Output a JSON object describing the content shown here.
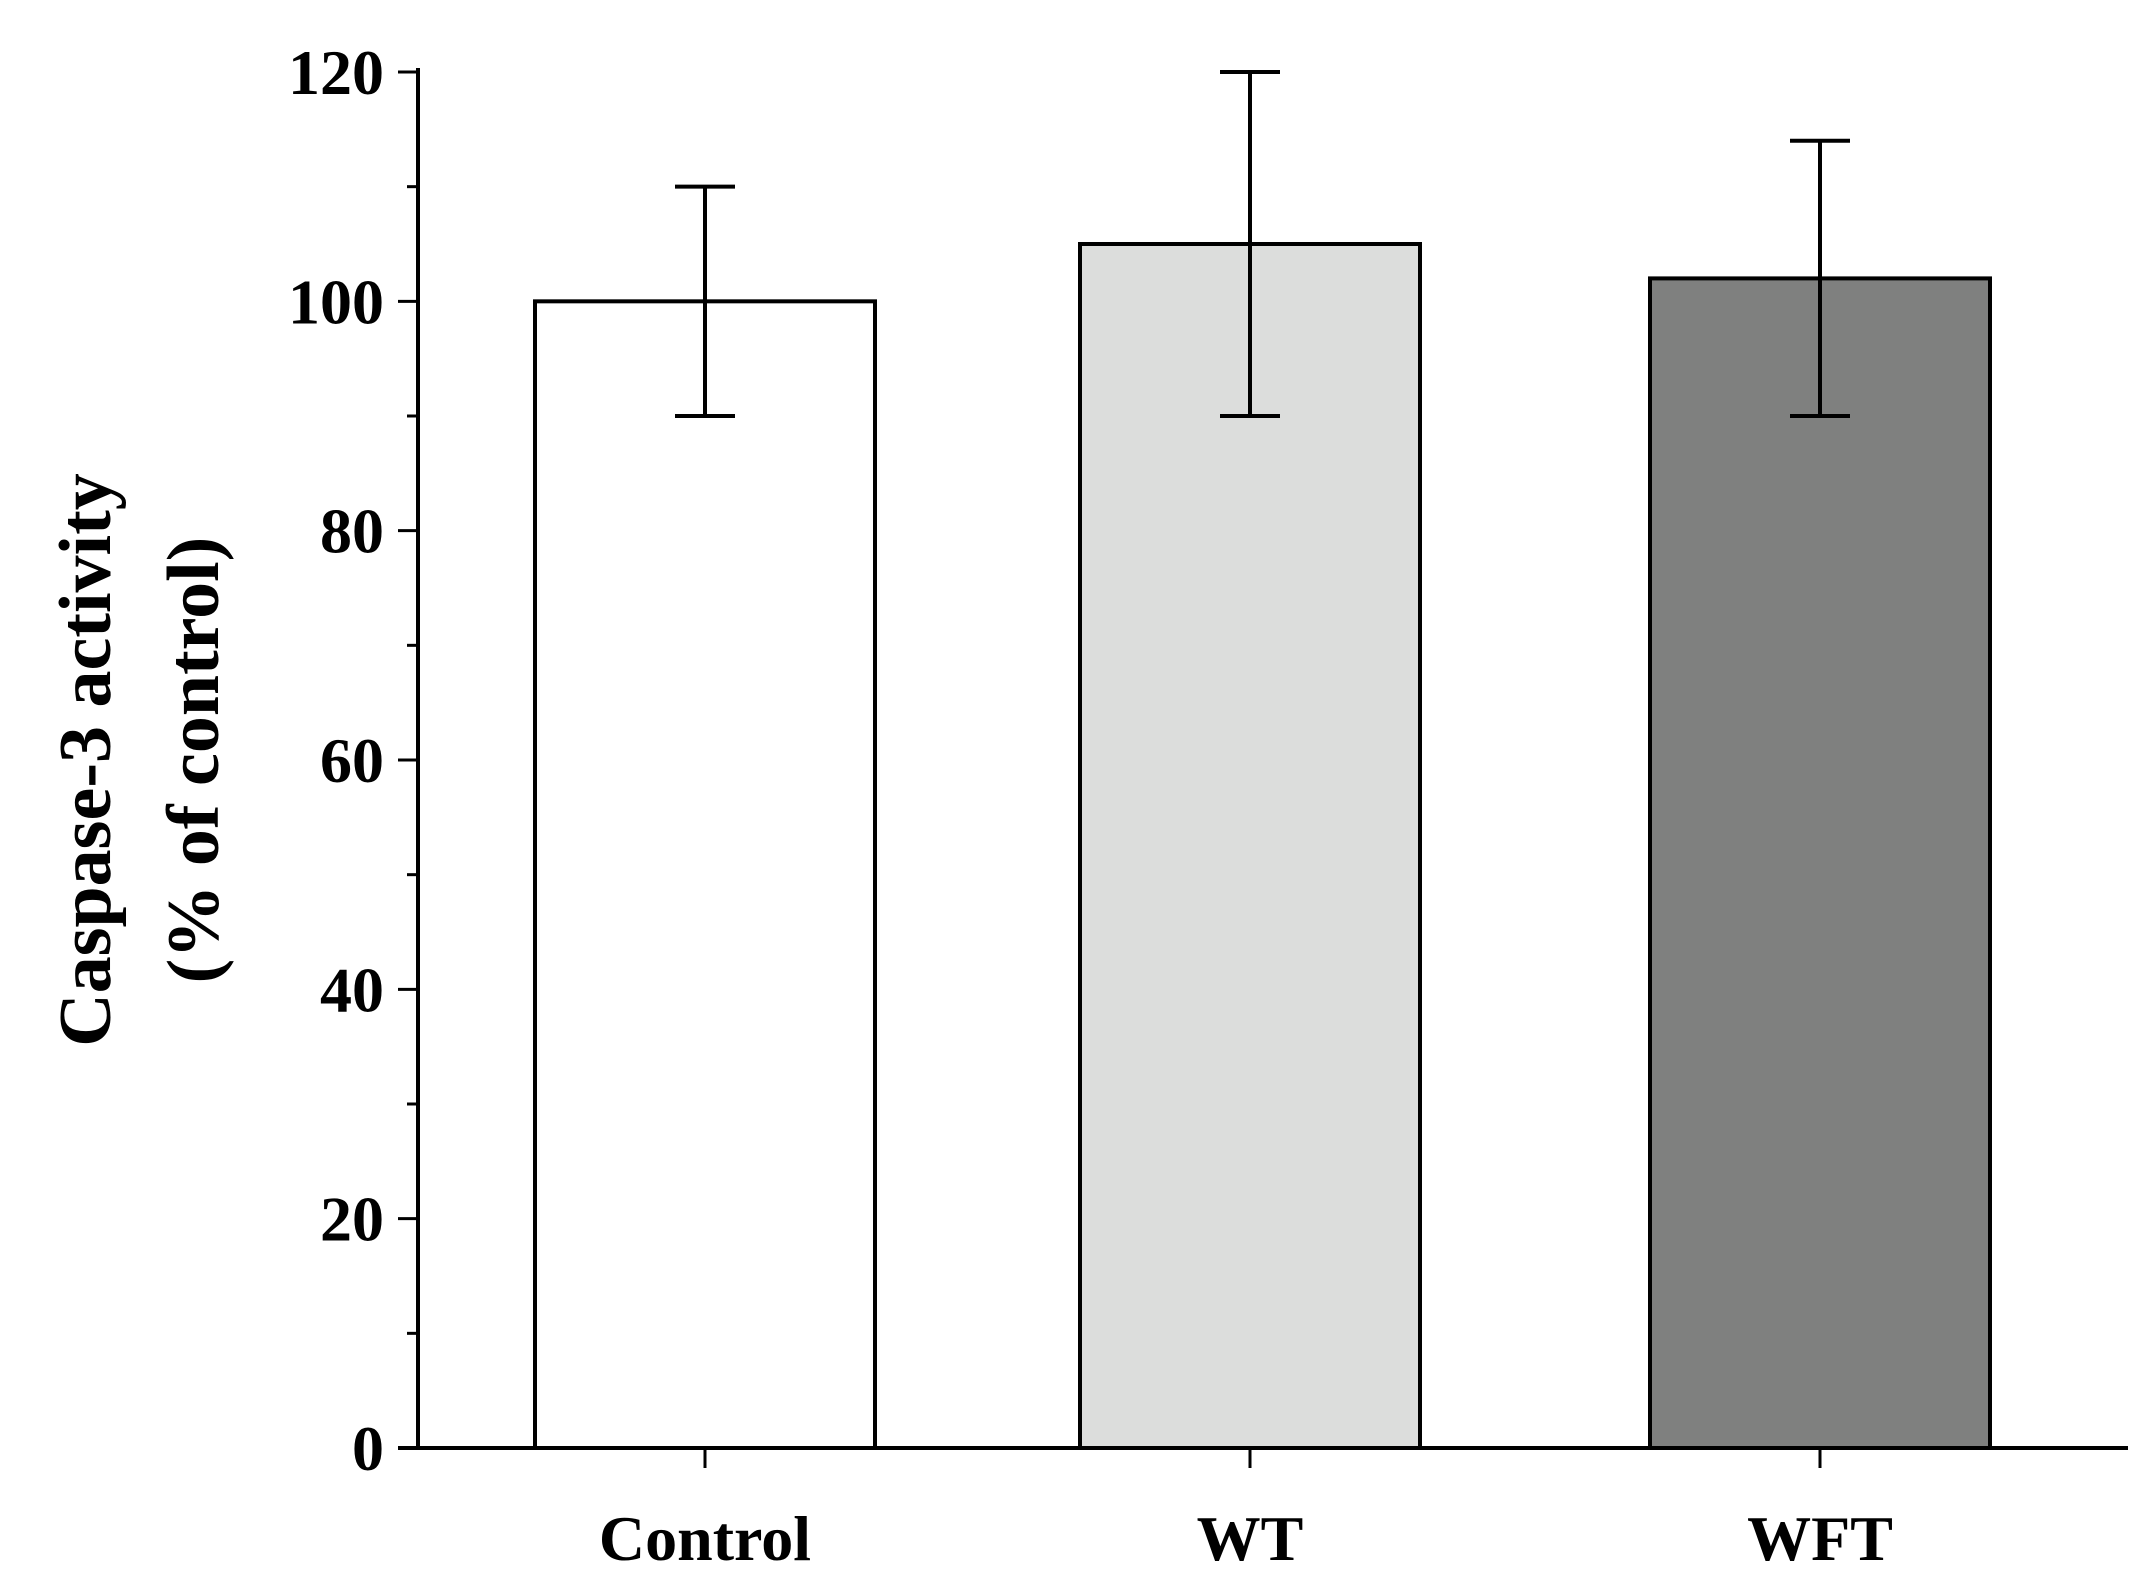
{
  "chart_data": {
    "type": "bar",
    "title": "",
    "xlabel": "",
    "ylabel_lines": [
      "Caspase-3 activity",
      "(% of control)"
    ],
    "categories": [
      "Control",
      "WT",
      "WFT"
    ],
    "values": [
      100,
      105,
      102
    ],
    "error_upper": [
      110,
      120,
      114
    ],
    "error_lower": [
      90,
      90,
      90
    ],
    "bar_colors": [
      "#ffffff",
      "#dcdddc",
      "#7f807f"
    ],
    "ylim": [
      0,
      120
    ],
    "y_major_ticks": [
      0,
      20,
      40,
      60,
      80,
      100,
      120
    ],
    "y_tick_labels": [
      "0",
      "20",
      "40",
      "60",
      "80",
      "100",
      "120"
    ],
    "y_minor_step": 10,
    "grid": false,
    "legend": "none"
  }
}
